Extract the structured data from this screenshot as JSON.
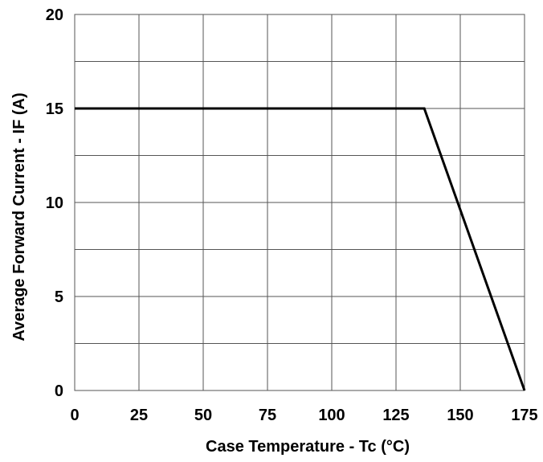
{
  "chart_data": {
    "type": "line",
    "title": "",
    "xlabel": "Case Temperature - Tc (°C)",
    "ylabel": "Average Forward Current - IF (A)",
    "xlim": [
      0,
      175
    ],
    "ylim": [
      0,
      20
    ],
    "x_ticks": [
      0,
      25,
      50,
      75,
      100,
      125,
      150,
      175
    ],
    "x_tick_labels": [
      "0",
      "25",
      "50",
      "75",
      "100",
      "125",
      "150",
      "175"
    ],
    "y_ticks": [
      0,
      5,
      10,
      15,
      20
    ],
    "y_tick_labels": [
      "0",
      "5",
      "10",
      "15",
      "20"
    ],
    "y_minor_gridlines": [
      2.5,
      7.5,
      12.5,
      17.5
    ],
    "grid": true,
    "legend": "none",
    "series": [
      {
        "x": [
          0,
          136,
          175
        ],
        "y": [
          15,
          15,
          0
        ],
        "color": "#000000"
      }
    ]
  }
}
